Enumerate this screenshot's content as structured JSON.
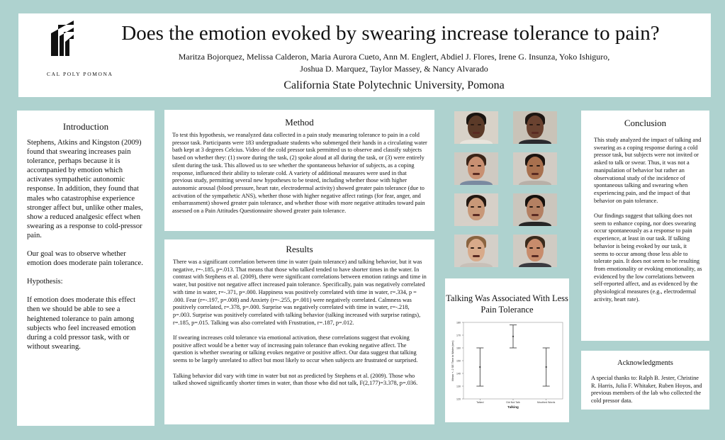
{
  "header": {
    "logo_text": "CAL POLY POMONA",
    "title": "Does the emotion evoked by swearing increase tolerance to pain?",
    "authors_line1": "Maritza Bojorquez, Melissa Calderon, Maria Aurora Cueto, Ann M. Englert, Abdiel J. Flores, Irene G. Insunza, Yoko Ishiguro,",
    "authors_line2": "Joshua D. Marquez, Taylor Massey, & Nancy Alvarado",
    "university": "California State Polytechnic University, Pomona"
  },
  "introduction": {
    "heading": "Introduction",
    "p1": "Stephens, Atkins and Kingston (2009) found that swearing increases pain tolerance, perhaps because it is accompanied by emotion which activates sympathetic autonomic response. In addition, they found that males who catastrophise experience stronger affect but, unlike other males, show a reduced analgesic effect when swearing as a response to cold-pressor pain.",
    "p2": "Our goal was to observe whether emotion does moderate pain tolerance.",
    "p3": "Hypothesis:",
    "p4": "If emotion does moderate this effect then we should be able to see a heightened tolerance to pain among subjects who feel increased emotion during a cold pressor task, with or without swearing."
  },
  "method": {
    "heading": "Method",
    "text": "To test this hypothesis, we reanalyzed data collected in a pain study measuring tolerance to pain in a cold pressor task. Participants were 183 undergraduate students who submerged their hands in a circulating water bath kept at 3 degrees Celcius. Video of the cold pressor task permitted us to observe and classify subjects based on whether they: (1) swore during the task, (2) spoke aloud at all during the task, or (3) were entirely silent during the task. This allowed us to see whether the spontaneous behavior of subjects, as a coping response, influenced their ability to tolerate cold. A variety of additional measures were used in that previous study, permitting several new hypotheses to be tested, including whether those with higher autonomic arousal (blood pressure, heart rate, electrodermal activity) showed greater pain tolerance (due to activation of the sympathetic ANS), whether those with higher negative affect ratings (for fear, anger, and embarrassment) showed greater pain tolerance, and whether those with more negative attitudes toward pain assessed on a Pain Attitudes Questionnaire showed greater pain tolerance."
  },
  "results": {
    "heading": "Results",
    "p1": "There was a significant correlation between time in water (pain tolerance) and talking behavior, but it was negative, r=-.185, p=.013. That means that those who talked tended to have shorter times in the water. In contrast with Stephens et al. (2009), there were significant correlations between emotion ratings and time in water, but positive not negative affect increased pain tolerance. Specifically, pain was negatively correlated with time in water, r=-.371, p=.000. Happiness was positively correlated with time in water, r=.334, p = .000. Fear (r=-.197, p=.008) and Anxiety (r=-.255, p=.001) were negatively correlated. Calmness was positively correlated, r=.378, p=.000. Surprise was negatively correlated with time in water, r=-.218, p=.003. Surprise was positively correlated with talking behavior (talking increased with surprise ratings), r=.185, p=.015. Talking was also correlated with Frustration, r=.187, p=.012.",
    "p2": "If swearing increases cold tolerance via emotional activation, these correlations suggest that evoking positive affect would be a better way of increasing pain tolerance than evoking negative affect. The question is whether swearing or talking evokes negative or positive affect. Our data suggest that talking seems to be largely unrelated to affect but most likely to occur when subjects are frustrated or surprised.",
    "p3": "Talking behavior did vary with time in water but not as predicted by Stephens et al. (2009). Those who talked showed significantly shorter times in water, than those who did not talk, F(2,177)=3.378, p=.036."
  },
  "faces": [
    {
      "skin": "#5b3a28",
      "hair": "#1a1410",
      "shirt": "#e8e4dc",
      "bg": "#d8d2c8"
    },
    {
      "skin": "#6a4230",
      "hair": "#1d1612",
      "shirt": "#2a2a2e",
      "bg": "#c9c3b8"
    },
    {
      "skin": "#c89072",
      "hair": "#3a2418",
      "shirt": "#7a8aa0",
      "bg": "#cfcac2"
    },
    {
      "skin": "#a8704e",
      "hair": "#1c1410",
      "shirt": "#b8b0a8",
      "bg": "#d2ccc4"
    },
    {
      "skin": "#c89878",
      "hair": "#231811",
      "shirt": "#d8d0c8",
      "bg": "#d6d0c8"
    },
    {
      "skin": "#b48062",
      "hair": "#15100c",
      "shirt": "#262626",
      "bg": "#cbc6bd"
    },
    {
      "skin": "#d8aa8a",
      "hair": "#8a6440",
      "shirt": "#c8c0b8",
      "bg": "#d4cfc8"
    },
    {
      "skin": "#c88c6c",
      "hair": "#3a2a1c",
      "shirt": "#3a3a40",
      "bg": "#d0cbc3"
    }
  ],
  "chart_title": "Talking Was Associated With Less Pain Tolerance",
  "chart_data": {
    "type": "errorbar",
    "xlabel": "Talking",
    "ylabel": "Mean +- 2 SE Time in Water (sec)",
    "categories": [
      "Talked",
      "Did Not Talk",
      "Mouthed Words"
    ],
    "means": [
      145,
      169,
      145
    ],
    "lower": [
      130,
      160,
      130
    ],
    "upper": [
      160,
      178,
      160
    ],
    "ylim": [
      120,
      180
    ]
  },
  "conclusion": {
    "heading": "Conclusion",
    "p1": "This study analyzed the impact of talking and swearing as a coping response during a cold pressor task, but subjects were not invited or asked to talk or swear. Thus, it was not a manipulation of behavior but rather an observational study of the incidence of spontaneous talking and swearing when experiencing pain, and the impact of that behavior on pain tolerance.",
    "p2": "Our findings suggest that talking does not seem to enhance coping, nor does swearing occur spontaneously as a response to pain experience, at least in our task. If talking behavior is being evoked by our task, it seems to occur among those less able to tolerate pain. It does not seem to be resulting from emotionality or evoking emotionality, as evidenced by the low correlations between self-reported affect, and as evidenced by the physiological measures (e.g., electrodermal activity, heart rate)."
  },
  "acknowledgments": {
    "heading": "Acknowledgments",
    "text": "A special thanks to: Ralph B. Jester, Christine R. Harris, Julia F. Whitaker, Ruben Hoyos, and previous members of the lab who collected the cold pressor data."
  }
}
